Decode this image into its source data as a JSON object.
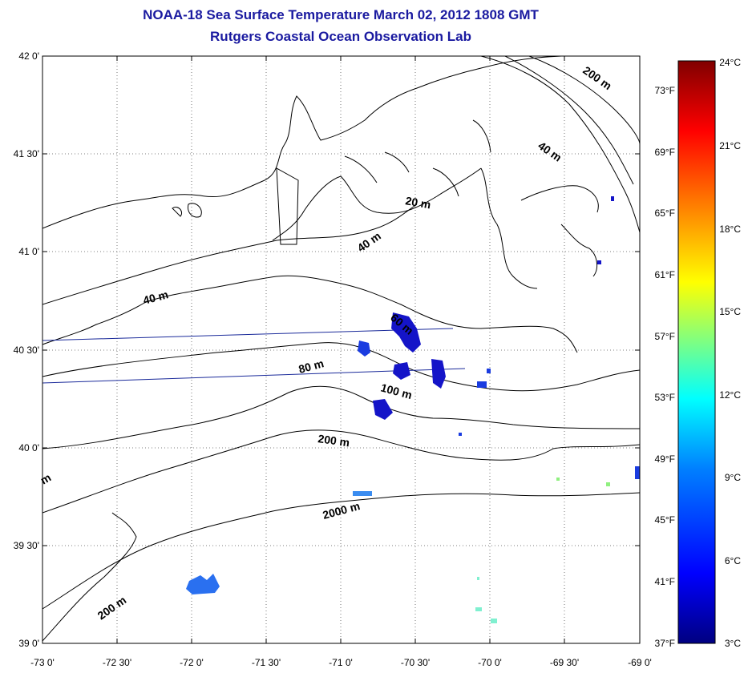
{
  "title": "NOAA-18 Sea Surface Temperature March 02, 2012 1808 GMT",
  "subtitle": "Rutgers Coastal Ocean Observation Lab",
  "latitude_labels": [
    "42 0'",
    "41 30'",
    "41 0'",
    "40 30'",
    "40 0'",
    "39 30'",
    "39 0'"
  ],
  "longitude_labels": [
    "-73 0'",
    "-72 30'",
    "-72 0'",
    "-71 30'",
    "-71 0'",
    "-70 30'",
    "-70 0'",
    "-69 30'",
    "-69 0'"
  ],
  "fahrenheit_labels": [
    "73°F",
    "69°F",
    "65°F",
    "61°F",
    "57°F",
    "53°F",
    "49°F",
    "45°F",
    "41°F",
    "37°F"
  ],
  "celsius_labels": [
    "24°C",
    "21°C",
    "18°C",
    "15°C",
    "12°C",
    "9°C",
    "6°C",
    "3°C"
  ],
  "contour_labels": [
    "200 m",
    "40 m",
    "20 m",
    "40 m",
    "40 m",
    "60 m",
    "80 m",
    "100 m",
    "200 m",
    "2000 m",
    "200 m",
    "m"
  ],
  "colors": {
    "title": "#1a1aa0",
    "coastline": "#000000",
    "track": "#1a2a9a",
    "colorbar": [
      "#000080",
      "#0000ff",
      "#0080ff",
      "#00ffff",
      "#80ff80",
      "#ffff00",
      "#ff8000",
      "#ff0000",
      "#800000"
    ]
  }
}
